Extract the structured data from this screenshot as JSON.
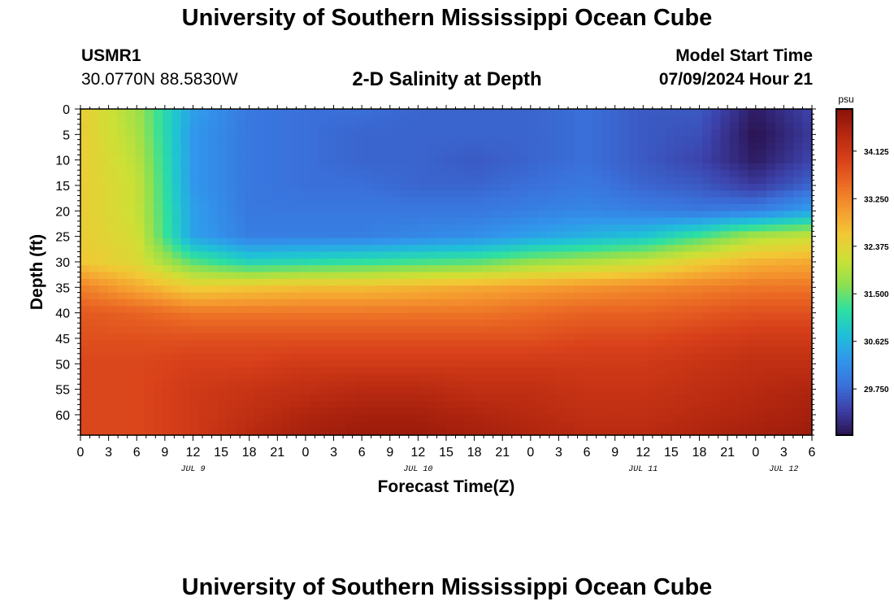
{
  "header": {
    "title": "University of Southern Mississippi Ocean Cube",
    "station_id": "USMR1",
    "station_coords": "30.0770N  88.5830W",
    "plot_title": "2-D Salinity at Depth",
    "run_label": "Model Start Time",
    "run_time": "07/09/2024 Hour 21"
  },
  "footer": {
    "title": "University of Southern Mississippi Ocean Cube"
  },
  "chart_data": {
    "type": "heatmap",
    "title": "2-D Salinity at Depth",
    "xlabel": "Forecast Time(Z)",
    "ylabel": "Depth (ft)",
    "x_tick_labels": [
      "0",
      "3",
      "6",
      "9",
      "12",
      "15",
      "18",
      "21",
      "0",
      "3",
      "6",
      "9",
      "12",
      "15",
      "18",
      "21",
      "0",
      "3",
      "6",
      "9",
      "12",
      "15",
      "18",
      "21",
      "0",
      "3",
      "6"
    ],
    "day_labels": [
      {
        "label": "JUL 9",
        "tick_index": 4
      },
      {
        "label": "JUL 10",
        "tick_index": 12
      },
      {
        "label": "JUL 11",
        "tick_index": 20
      },
      {
        "label": "JUL 12",
        "tick_index": 25
      }
    ],
    "x_hours_range": [
      0,
      78
    ],
    "y_tick_labels": [
      "0",
      "5",
      "10",
      "15",
      "20",
      "25",
      "30",
      "35",
      "40",
      "45",
      "50",
      "55",
      "60"
    ],
    "y_values_ft": [
      0,
      5,
      10,
      15,
      20,
      25,
      30,
      35,
      40,
      45,
      50,
      55,
      60
    ],
    "y_range_ft": [
      0,
      64
    ],
    "y_inverted": true,
    "colorbar": {
      "unit": "psu",
      "tick_labels": [
        "34.125",
        "33.250",
        "32.375",
        "31.500",
        "30.625",
        "29.750"
      ],
      "tick_values": [
        34.125,
        33.25,
        32.375,
        31.5,
        30.625,
        29.75
      ],
      "range": [
        28.9,
        34.9
      ],
      "colormap": [
        "#2a1250",
        "#3c40a8",
        "#3a72dc",
        "#3196ec",
        "#1fc0d8",
        "#2ee0a0",
        "#8ee050",
        "#cde035",
        "#f2c835",
        "#f59a2f",
        "#eb6a24",
        "#d8401a",
        "#b52810",
        "#8a1208"
      ]
    },
    "grid": false,
    "times_hours": [
      0,
      6,
      12,
      18,
      24,
      30,
      36,
      42,
      48,
      54,
      60,
      66,
      72,
      78
    ],
    "depths_ft": [
      0,
      5,
      10,
      15,
      20,
      25,
      30,
      35,
      40,
      45,
      50,
      55,
      60,
      64
    ],
    "salinity_psu": [
      [
        32.5,
        31.8,
        30.4,
        29.9,
        29.8,
        29.8,
        29.7,
        29.7,
        29.7,
        29.8,
        29.6,
        29.6,
        29.0,
        29.4
      ],
      [
        32.5,
        31.9,
        30.3,
        29.9,
        29.8,
        29.7,
        29.7,
        29.7,
        29.7,
        29.8,
        29.6,
        29.5,
        28.9,
        29.3
      ],
      [
        32.5,
        32.0,
        30.3,
        29.9,
        29.8,
        29.7,
        29.7,
        29.6,
        29.7,
        29.8,
        29.6,
        29.4,
        29.0,
        29.4
      ],
      [
        32.5,
        32.1,
        30.3,
        29.9,
        29.8,
        29.8,
        29.7,
        29.7,
        29.8,
        29.9,
        29.7,
        29.6,
        29.3,
        29.7
      ],
      [
        32.5,
        32.1,
        30.4,
        29.9,
        29.9,
        29.9,
        29.9,
        29.9,
        30.0,
        30.1,
        30.0,
        29.9,
        30.0,
        30.4
      ],
      [
        32.5,
        32.2,
        30.4,
        30.0,
        30.0,
        30.0,
        30.1,
        30.2,
        30.4,
        30.6,
        30.8,
        31.3,
        31.9,
        32.1
      ],
      [
        32.6,
        32.3,
        31.4,
        31.0,
        31.1,
        31.2,
        31.3,
        31.4,
        31.7,
        31.9,
        32.1,
        32.5,
        32.8,
        32.9
      ],
      [
        33.3,
        32.9,
        32.5,
        32.6,
        32.7,
        32.7,
        32.8,
        32.9,
        33.0,
        33.1,
        33.2,
        33.3,
        33.4,
        33.4
      ],
      [
        33.7,
        33.6,
        33.4,
        33.4,
        33.4,
        33.4,
        33.4,
        33.4,
        33.5,
        33.6,
        33.6,
        33.7,
        33.8,
        33.8
      ],
      [
        33.8,
        33.8,
        33.8,
        33.8,
        33.8,
        33.8,
        33.8,
        33.8,
        33.8,
        33.9,
        33.9,
        34.0,
        34.1,
        34.1
      ],
      [
        33.9,
        33.9,
        34.0,
        34.0,
        34.1,
        34.1,
        34.1,
        34.1,
        34.1,
        34.1,
        34.1,
        34.2,
        34.3,
        34.3
      ],
      [
        33.9,
        33.9,
        34.1,
        34.2,
        34.3,
        34.4,
        34.4,
        34.3,
        34.3,
        34.2,
        34.2,
        34.3,
        34.4,
        34.5
      ],
      [
        33.9,
        33.9,
        34.1,
        34.3,
        34.5,
        34.6,
        34.6,
        34.5,
        34.4,
        34.3,
        34.3,
        34.4,
        34.5,
        34.6
      ],
      [
        33.9,
        33.9,
        34.1,
        34.4,
        34.6,
        34.7,
        34.7,
        34.6,
        34.5,
        34.4,
        34.4,
        34.5,
        34.6,
        34.7
      ]
    ]
  }
}
